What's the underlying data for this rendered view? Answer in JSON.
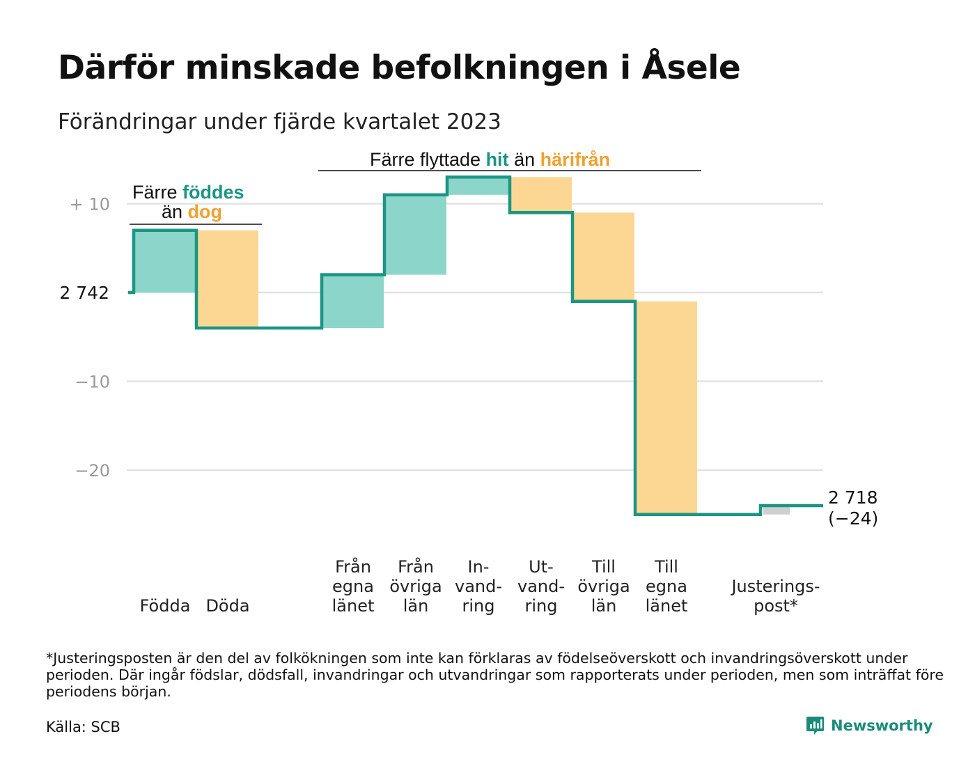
{
  "title": "Därför minskade befolkningen i Åsele",
  "subtitle": "Förändringar under fjärde kvartalet 2023",
  "footnote": "*Justeringsposten är den del av folkökningen som inte kan förklaras av födelseöverskott och invandringsöverskott under perioden. Där ingår födslar, dödsfall, invandringar och utvandringar som rapporterats under perioden, men som inträffat före periodens början.",
  "source": "Källa: SCB",
  "brand": {
    "name": "Newsworthy",
    "icon": "newsworthy-logo-icon"
  },
  "colors": {
    "increase": "#8cd5ca",
    "decrease": "#fbd793",
    "adjustment": "#cfcfcf",
    "line": "#1a9683",
    "accent_teal": "#1a9683",
    "accent_orange": "#f0a030",
    "grid": "#e2e2e2",
    "tick": "#999999"
  },
  "chart_data": {
    "type": "waterfall",
    "start": {
      "value": 2742,
      "label": "2 742"
    },
    "end": {
      "value": 2718,
      "label": "2 718",
      "change_label": "(−24)"
    },
    "ylim": [
      -25,
      13
    ],
    "y_ticks": [
      {
        "value": 10,
        "label": "+  10"
      },
      {
        "value": -10,
        "label": "−10"
      },
      {
        "value": -20,
        "label": "−20"
      }
    ],
    "grid": true,
    "steps": [
      {
        "label": [
          "Födda"
        ],
        "change": 7,
        "kind": "increase"
      },
      {
        "label": [
          "Döda"
        ],
        "change": -11,
        "kind": "decrease"
      },
      {
        "label": [
          "Från",
          "egna",
          "länet"
        ],
        "change": 6,
        "kind": "increase"
      },
      {
        "label": [
          "Från",
          "övriga",
          "län"
        ],
        "change": 9,
        "kind": "increase"
      },
      {
        "label": [
          "In-",
          "vand-",
          "ring"
        ],
        "change": 2,
        "kind": "increase"
      },
      {
        "label": [
          "Ut-",
          "vand-",
          "ring"
        ],
        "change": -4,
        "kind": "decrease"
      },
      {
        "label": [
          "Till",
          "övriga",
          "län"
        ],
        "change": -10,
        "kind": "decrease"
      },
      {
        "label": [
          "Till",
          "egna",
          "länet"
        ],
        "change": -24,
        "kind": "decrease"
      },
      {
        "label": [
          "Justerings-",
          "post*"
        ],
        "change": 1,
        "kind": "adjustment"
      }
    ],
    "annotations": [
      {
        "parts": [
          {
            "text": "Färre ",
            "style": "plain"
          },
          {
            "text": "föddes",
            "style": "teal"
          }
        ],
        "parts2": [
          {
            "text": "än ",
            "style": "plain"
          },
          {
            "text": "dog",
            "style": "orange"
          }
        ]
      },
      {
        "parts": [
          {
            "text": "Färre flyttade ",
            "style": "plain"
          },
          {
            "text": "hit",
            "style": "teal"
          },
          {
            "text": "  än ",
            "style": "plain"
          },
          {
            "text": "härifrån",
            "style": "orange"
          }
        ]
      }
    ]
  }
}
